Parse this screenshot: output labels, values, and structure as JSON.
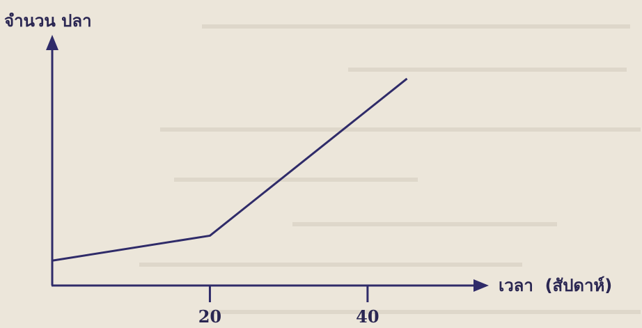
{
  "chart_data": {
    "type": "line",
    "title": "",
    "ylabel": "จำนวน ปลา",
    "xlabel": "เวลา  (สัปดาห์)",
    "xlim": [
      0,
      45
    ],
    "xticks": [
      {
        "value": 20,
        "label": "20"
      },
      {
        "value": 40,
        "label": "40"
      }
    ],
    "series": [
      {
        "x": [
          0,
          20,
          45
        ],
        "y": [
          1.0,
          2.0,
          8.3
        ]
      }
    ],
    "ylim": [
      0,
      9.5
    ],
    "grid": false,
    "legend": "none",
    "colors": {
      "line": "#2f2b69",
      "axis": "#2f2b69",
      "text": "#2a2652",
      "background": "#ece6da"
    }
  }
}
